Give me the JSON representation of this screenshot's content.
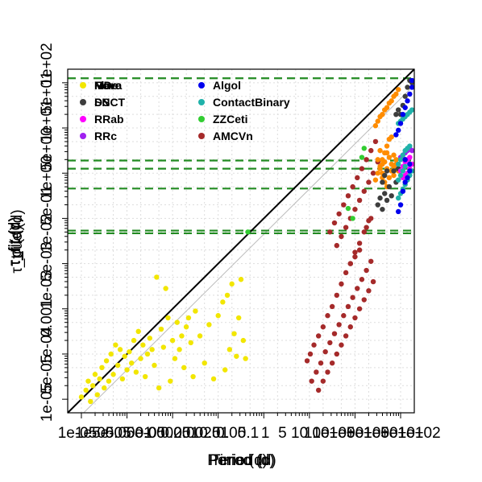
{
  "chart_data": {
    "type": "scatter",
    "title": "",
    "xlabel": "Period (d)",
    "xlabel_overprint": [
      "Time (d)",
      "Period (d)",
      "Period (d)"
    ],
    "ylabel_overprint": [
      "τ_fit (d)",
      "τ_fit (d)",
      "σ (d)",
      "τ_true (d)"
    ],
    "x_tick_labels": [
      "1e-05",
      "5e-05",
      "1e-04",
      "5e-04",
      "0.001",
      "0.005",
      "0.01",
      "0.05",
      "0.1",
      "0.5",
      "1",
      "5",
      "10",
      "50",
      "100"
    ],
    "x_tick_overprint": [
      "1e-05",
      "1e-05",
      "5e-05",
      "0.0001",
      "5e-05",
      "0.00025",
      "0.001",
      "0.0025",
      "0.01",
      "0.05",
      "0.1",
      "1",
      "5",
      "10",
      "100",
      "1e+00",
      "1e+01",
      "5e+00",
      "1e+01",
      "5e+01",
      "1e+02"
    ],
    "y_tick_labels": [
      "1e-05",
      "5e-05",
      "1e-04",
      "5e-04",
      "0.001",
      "0.005",
      "0.01",
      "0.05",
      "0.1",
      "0.5",
      "1",
      "5",
      "10",
      "50",
      "100"
    ],
    "y_tick_overprint": [
      "1e-05",
      "5e-05",
      "1e-04",
      "0.001",
      "1e-03",
      "5e-03",
      "1e-02",
      "5e-01",
      "1e+00",
      "5e+00",
      "1e+01",
      "5e+01",
      "1e+02"
    ],
    "log_x": true,
    "log_y": true,
    "xlim": [
      -5.3,
      2.3
    ],
    "ylim": [
      -5.3,
      2.3
    ],
    "grid": true,
    "legend_position": "top-left",
    "legend": [
      {
        "name": "Flare",
        "overprint": [
          "MDe",
          "Flare",
          "Nova"
        ],
        "color": "#f2e600"
      },
      {
        "name": "SN",
        "overprint": [
          "DSCT",
          "SN"
        ],
        "color": "#3d3d3d"
      },
      {
        "name": "RRab",
        "color": "#ff00ff"
      },
      {
        "name": "RRc",
        "color": "#a020f0"
      },
      {
        "name": "Algol",
        "color": "#0000ee"
      },
      {
        "name": "ContactBinary",
        "color": "#20b2aa"
      },
      {
        "name": "ZZCeti",
        "color": "#32cd32"
      },
      {
        "name": "AMCVn",
        "color": "#a52a2a"
      }
    ],
    "hlines_log10": [
      2.1,
      0.28,
      0.1,
      -0.34,
      -1.27,
      -1.33
    ],
    "hline_color": "#228b22",
    "diagonal_color": "#000000",
    "offset_line_color": "#bbbbbb",
    "series": [
      {
        "name": "Flare",
        "color": "#f2e600",
        "points": [
          [
            -5.0,
            -4.95
          ],
          [
            -4.9,
            -4.8
          ],
          [
            -4.85,
            -4.6
          ],
          [
            -4.8,
            -5.05
          ],
          [
            -4.75,
            -4.7
          ],
          [
            -4.7,
            -4.45
          ],
          [
            -4.65,
            -4.9
          ],
          [
            -4.6,
            -4.55
          ],
          [
            -4.55,
            -4.3
          ],
          [
            -4.5,
            -4.75
          ],
          [
            -4.45,
            -4.15
          ],
          [
            -4.4,
            -4.6
          ],
          [
            -4.35,
            -4.0
          ],
          [
            -4.3,
            -4.45
          ],
          [
            -4.25,
            -3.8
          ],
          [
            -4.2,
            -4.25
          ],
          [
            -4.15,
            -3.9
          ],
          [
            -4.1,
            -4.55
          ],
          [
            -4.05,
            -4.05
          ],
          [
            -4.0,
            -4.35
          ],
          [
            -3.95,
            -3.95
          ],
          [
            -3.9,
            -4.2
          ],
          [
            -3.85,
            -3.7
          ],
          [
            -3.8,
            -4.4
          ],
          [
            -3.75,
            -3.5
          ],
          [
            -3.7,
            -4.1
          ],
          [
            -3.65,
            -3.8
          ],
          [
            -3.6,
            -4.5
          ],
          [
            -3.55,
            -4.0
          ],
          [
            -3.5,
            -3.65
          ],
          [
            -3.45,
            -3.9
          ],
          [
            -3.4,
            -4.25
          ],
          [
            -3.35,
            -2.3
          ],
          [
            -3.3,
            -4.75
          ],
          [
            -3.25,
            -3.45
          ],
          [
            -3.2,
            -3.85
          ],
          [
            -3.15,
            -2.55
          ],
          [
            -3.1,
            -3.2
          ],
          [
            -3.05,
            -4.6
          ],
          [
            -3.0,
            -3.7
          ],
          [
            -2.95,
            -4.1
          ],
          [
            -2.9,
            -3.3
          ],
          [
            -2.85,
            -3.9
          ],
          [
            -2.8,
            -3.6
          ],
          [
            -2.75,
            -4.3
          ],
          [
            -2.7,
            -3.4
          ],
          [
            -2.65,
            -3.2
          ],
          [
            -2.6,
            -3.75
          ],
          [
            -2.55,
            -4.5
          ],
          [
            -2.5,
            -3.05
          ],
          [
            -2.4,
            -3.6
          ],
          [
            -2.3,
            -4.2
          ],
          [
            -2.2,
            -3.35
          ],
          [
            -2.1,
            -4.55
          ],
          [
            -2.0,
            -3.15
          ],
          [
            -1.9,
            -2.85
          ],
          [
            -1.85,
            -4.35
          ],
          [
            -1.8,
            -2.7
          ],
          [
            -1.75,
            -3.9
          ],
          [
            -1.7,
            -2.45
          ],
          [
            -1.65,
            -3.55
          ],
          [
            -1.6,
            -4.05
          ],
          [
            -1.55,
            -3.2
          ],
          [
            -1.5,
            -2.35
          ],
          [
            -1.45,
            -3.7
          ],
          [
            -1.4,
            -4.1
          ]
        ]
      },
      {
        "name": "AMCVn",
        "color": "#a52a2a",
        "points": [
          [
            -0.05,
            -4.15
          ],
          [
            0.02,
            -4.0
          ],
          [
            0.1,
            -3.8
          ],
          [
            0.2,
            -3.6
          ],
          [
            0.3,
            -3.4
          ],
          [
            0.4,
            -3.15
          ],
          [
            0.5,
            -2.95
          ],
          [
            0.6,
            -2.7
          ],
          [
            0.7,
            -2.45
          ],
          [
            0.8,
            -2.2
          ],
          [
            0.9,
            -2.0
          ],
          [
            1.0,
            -1.75
          ],
          [
            1.1,
            -1.55
          ],
          [
            1.2,
            -1.3
          ],
          [
            1.3,
            -1.05
          ],
          [
            0.05,
            -4.6
          ],
          [
            0.15,
            -4.4
          ],
          [
            0.25,
            -4.2
          ],
          [
            0.35,
            -3.95
          ],
          [
            0.45,
            -3.75
          ],
          [
            0.55,
            -3.55
          ],
          [
            0.65,
            -3.35
          ],
          [
            0.75,
            -3.15
          ],
          [
            0.85,
            -2.95
          ],
          [
            0.95,
            -2.75
          ],
          [
            1.05,
            -2.55
          ],
          [
            1.15,
            -2.35
          ],
          [
            1.25,
            -2.15
          ],
          [
            1.35,
            -1.95
          ],
          [
            0.2,
            -4.8
          ],
          [
            0.3,
            -4.6
          ],
          [
            0.4,
            -4.4
          ],
          [
            0.5,
            -4.2
          ],
          [
            0.6,
            -4.0
          ],
          [
            0.7,
            -3.8
          ],
          [
            0.8,
            -3.6
          ],
          [
            0.9,
            -3.4
          ],
          [
            1.0,
            -3.2
          ],
          [
            1.1,
            -3.0
          ],
          [
            1.2,
            -2.8
          ],
          [
            1.3,
            -2.6
          ],
          [
            1.4,
            -2.4
          ],
          [
            0.45,
            -1.3
          ],
          [
            0.55,
            -1.1
          ],
          [
            0.65,
            -0.9
          ],
          [
            0.75,
            -0.7
          ],
          [
            0.85,
            -0.5
          ],
          [
            0.95,
            -0.3
          ],
          [
            1.05,
            -0.1
          ],
          [
            1.15,
            0.1
          ],
          [
            1.25,
            0.3
          ],
          [
            1.35,
            0.5
          ],
          [
            1.45,
            0.7
          ],
          [
            0.6,
            -1.6
          ],
          [
            0.7,
            -1.4
          ],
          [
            0.8,
            -1.2
          ],
          [
            0.9,
            -1.0
          ],
          [
            1.0,
            -0.8
          ],
          [
            1.1,
            -0.6
          ],
          [
            1.2,
            -0.4
          ],
          [
            1.3,
            -0.2
          ],
          [
            1.4,
            0.0
          ],
          [
            1.5,
            0.25
          ],
          [
            0.9,
            -2.0
          ],
          [
            1.0,
            -1.85
          ],
          [
            1.1,
            -1.7
          ],
          [
            1.25,
            -1.2
          ],
          [
            1.35,
            -1.0
          ]
        ]
      },
      {
        "name": "ZZCeti",
        "color": "#32cd32",
        "points": [
          [
            -1.35,
            -1.3
          ],
          [
            0.85,
            -0.78
          ],
          [
            0.95,
            -1.0
          ],
          [
            1.15,
            0.35
          ],
          [
            1.2,
            0.55
          ]
        ]
      },
      {
        "name": "Flare-orange",
        "color": "#ff8c00",
        "points": [
          [
            1.45,
            1.05
          ],
          [
            1.5,
            1.15
          ],
          [
            1.55,
            1.25
          ],
          [
            1.6,
            1.3
          ],
          [
            1.65,
            1.4
          ],
          [
            1.7,
            1.45
          ],
          [
            1.75,
            1.55
          ],
          [
            1.8,
            1.6
          ],
          [
            1.85,
            1.7
          ],
          [
            1.9,
            1.75
          ],
          [
            1.95,
            1.85
          ],
          [
            1.45,
            -0.15
          ],
          [
            1.5,
            0.0
          ],
          [
            1.55,
            0.15
          ],
          [
            1.6,
            0.3
          ],
          [
            1.65,
            0.45
          ],
          [
            1.7,
            0.6
          ],
          [
            1.75,
            0.75
          ],
          [
            1.8,
            0.8
          ],
          [
            1.85,
            0.4
          ],
          [
            1.9,
            0.2
          ],
          [
            1.95,
            0.05
          ],
          [
            1.5,
            0.3
          ],
          [
            1.55,
            0.5
          ],
          [
            1.6,
            -0.1
          ],
          [
            1.65,
            0.25
          ],
          [
            1.7,
            0.1
          ],
          [
            1.75,
            0.35
          ],
          [
            1.8,
            0.2
          ],
          [
            1.85,
            -0.05
          ],
          [
            1.6,
            0.0
          ],
          [
            1.65,
            -0.2
          ],
          [
            1.7,
            -0.3
          ],
          [
            1.75,
            -0.1
          ],
          [
            1.8,
            0.05
          ],
          [
            1.85,
            0.15
          ],
          [
            1.9,
            0.3
          ],
          [
            1.55,
            0.1
          ],
          [
            1.6,
            0.2
          ],
          [
            1.7,
            0.45
          ]
        ]
      },
      {
        "name": "SN",
        "color": "#3d3d3d",
        "points": [
          [
            1.5,
            -0.7
          ],
          [
            1.55,
            -0.55
          ],
          [
            1.6,
            -0.8
          ],
          [
            1.65,
            -0.45
          ],
          [
            1.7,
            -0.6
          ],
          [
            1.75,
            -0.3
          ],
          [
            1.8,
            -0.5
          ],
          [
            1.85,
            0.05
          ],
          [
            1.9,
            -0.2
          ],
          [
            1.95,
            0.1
          ],
          [
            2.0,
            1.3
          ],
          [
            2.05,
            1.5
          ],
          [
            2.1,
            1.7
          ],
          [
            2.15,
            1.9
          ],
          [
            2.2,
            2.05
          ],
          [
            2.25,
            2.0
          ],
          [
            1.9,
            1.3
          ],
          [
            1.95,
            1.4
          ],
          [
            1.6,
            -0.2
          ],
          [
            1.65,
            -0.05
          ],
          [
            1.7,
            0.05
          ]
        ]
      },
      {
        "name": "RRab",
        "color": "#ff00ff",
        "points": [
          [
            2.05,
            0.15
          ],
          [
            2.1,
            0.25
          ],
          [
            2.15,
            0.3
          ],
          [
            2.2,
            0.35
          ],
          [
            2.25,
            0.2
          ],
          [
            2.2,
            0.1
          ],
          [
            2.15,
            0.0
          ],
          [
            2.1,
            -0.05
          ],
          [
            2.0,
            0.05
          ],
          [
            2.05,
            -0.1
          ]
        ]
      },
      {
        "name": "RRc",
        "color": "#a020f0",
        "points": [
          [
            2.05,
            0.4
          ],
          [
            2.1,
            0.45
          ],
          [
            2.15,
            0.5
          ],
          [
            2.2,
            0.55
          ],
          [
            2.0,
            0.35
          ],
          [
            2.25,
            0.5
          ],
          [
            2.1,
            0.3
          ]
        ]
      },
      {
        "name": "ContactBinary",
        "color": "#20b2aa",
        "points": [
          [
            1.95,
            1.1
          ],
          [
            2.0,
            1.15
          ],
          [
            2.05,
            1.2
          ],
          [
            2.1,
            1.25
          ],
          [
            2.15,
            1.3
          ],
          [
            2.2,
            1.35
          ],
          [
            2.25,
            1.4
          ],
          [
            1.95,
            -0.55
          ],
          [
            2.0,
            -0.45
          ],
          [
            2.05,
            -0.35
          ],
          [
            2.1,
            -0.25
          ],
          [
            2.15,
            -0.15
          ],
          [
            2.2,
            -0.05
          ],
          [
            2.25,
            0.05
          ],
          [
            1.95,
            -0.15
          ],
          [
            2.0,
            -0.05
          ],
          [
            2.05,
            0.05
          ],
          [
            2.1,
            0.15
          ],
          [
            1.95,
            0.2
          ],
          [
            2.0,
            0.3
          ],
          [
            2.05,
            0.4
          ],
          [
            2.1,
            0.5
          ],
          [
            2.15,
            0.55
          ],
          [
            2.2,
            0.6
          ]
        ]
      },
      {
        "name": "Algol",
        "color": "#0000ee",
        "points": [
          [
            1.95,
            -0.85
          ],
          [
            2.0,
            -0.7
          ],
          [
            2.05,
            -0.4
          ],
          [
            2.1,
            -0.2
          ],
          [
            2.15,
            -0.1
          ],
          [
            2.2,
            0.05
          ],
          [
            1.9,
            0.85
          ],
          [
            1.95,
            0.95
          ],
          [
            2.0,
            1.1
          ],
          [
            2.05,
            1.3
          ],
          [
            2.1,
            1.45
          ],
          [
            2.15,
            1.6
          ],
          [
            2.2,
            1.75
          ],
          [
            2.25,
            1.9
          ],
          [
            2.25,
            2.05
          ],
          [
            2.2,
            0.2
          ],
          [
            2.1,
            0.3
          ]
        ]
      }
    ]
  }
}
